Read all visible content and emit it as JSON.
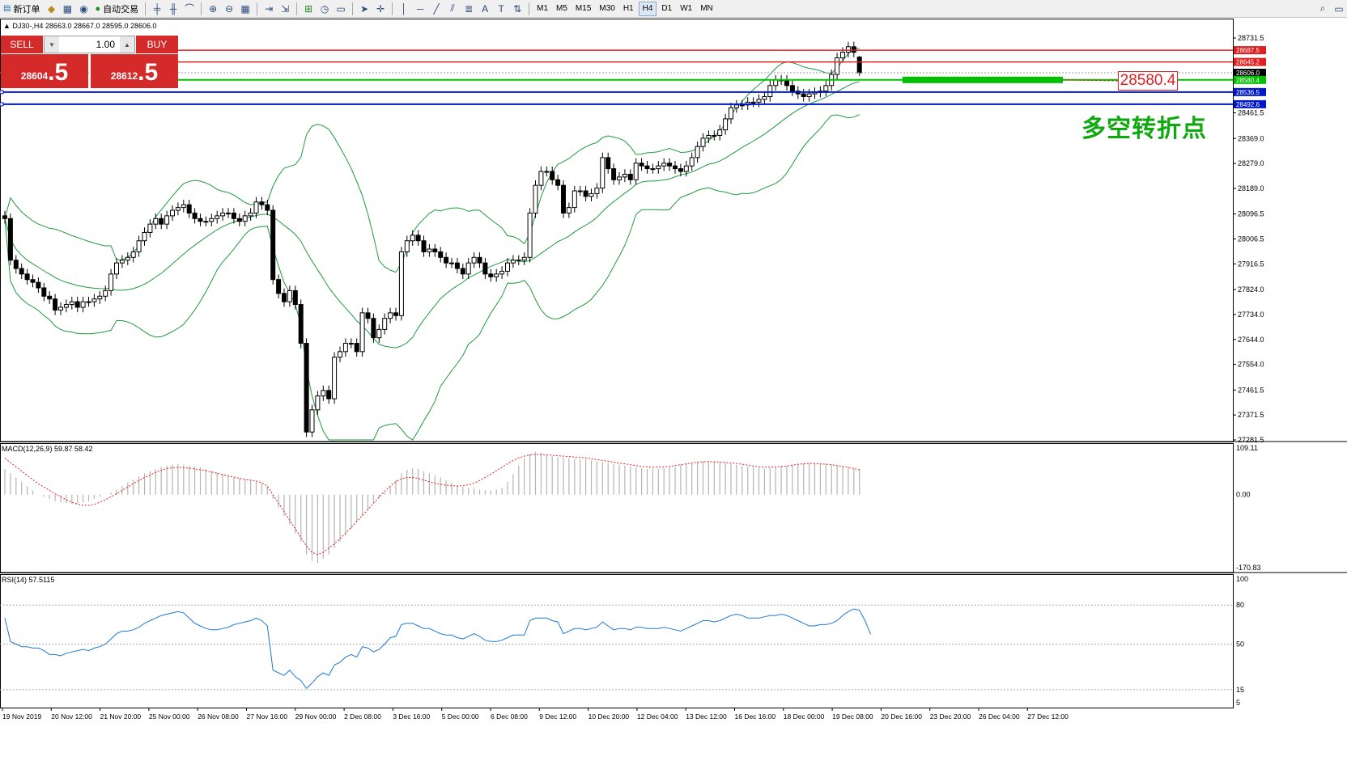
{
  "toolbar": {
    "new_order": "新订单",
    "auto_trading": "自动交易",
    "timeframes": [
      "M1",
      "M5",
      "M15",
      "M30",
      "H1",
      "H4",
      "D1",
      "W1",
      "MN"
    ],
    "active_timeframe": "H4"
  },
  "chart_info": "DJ30-,H4  28663.0 28667.0 28595.0 28606.0",
  "trade_panel": {
    "sell_label": "SELL",
    "buy_label": "BUY",
    "lot": "1.00",
    "sell_small": "28604",
    "sell_big": ".5",
    "buy_small": "28612",
    "buy_big": ".5"
  },
  "annotation": {
    "price_box": "28580.4",
    "text": "多空转折点"
  },
  "colors": {
    "bollinger": "#1e9a3c",
    "resistance": "#e02020",
    "pivot": "#00c000",
    "support": "#0018c8",
    "macd_signal": "#e02020",
    "macd_hist": "#b4b4b4",
    "rsi": "#1e78d2"
  },
  "chart_data": [
    {
      "type": "candlestick",
      "symbol": "DJ30-",
      "timeframe": "H4",
      "ohlc_last": {
        "open": 28663.0,
        "high": 28667.0,
        "low": 28595.0,
        "close": 28606.0
      },
      "ylim": [
        27281.5,
        28731.5
      ],
      "y_ticks": [
        28731.5,
        28461.5,
        28369.0,
        28279.0,
        28189.0,
        28096.5,
        28006.5,
        27916.5,
        27824.0,
        27734.0,
        27644.0,
        27554.0,
        27461.5,
        27371.5,
        27281.5
      ],
      "x_ticks": [
        "19 Nov 2019",
        "20 Nov 12:00",
        "21 Nov 20:00",
        "25 Nov 00:00",
        "26 Nov 08:00",
        "27 Nov 16:00",
        "29 Nov 00:00",
        "2 Dec 08:00",
        "3 Dec 16:00",
        "5 Dec 00:00",
        "6 Dec 08:00",
        "9 Dec 12:00",
        "10 Dec 20:00",
        "12 Dec 04:00",
        "13 Dec 12:00",
        "16 Dec 16:00",
        "18 Dec 00:00",
        "19 Dec 08:00",
        "20 Dec 16:00",
        "23 Dec 20:00",
        "26 Dec 04:00",
        "27 Dec 12:00"
      ],
      "closes": [
        28080,
        27930,
        27900,
        27880,
        27860,
        27850,
        27830,
        27800,
        27790,
        27750,
        27760,
        27770,
        27780,
        27760,
        27780,
        27780,
        27790,
        27800,
        27820,
        27880,
        27920,
        27930,
        27940,
        27960,
        28000,
        28030,
        28060,
        28080,
        28060,
        28090,
        28110,
        28120,
        28130,
        28100,
        28080,
        28070,
        28070,
        28080,
        28090,
        28100,
        28100,
        28080,
        28070,
        28090,
        28100,
        28140,
        28130,
        28110,
        27860,
        27810,
        27780,
        27820,
        27770,
        27630,
        27310,
        27390,
        27440,
        27460,
        27430,
        27580,
        27600,
        27630,
        27630,
        27600,
        27740,
        27720,
        27650,
        27680,
        27720,
        27740,
        27730,
        27960,
        28000,
        28020,
        28000,
        27960,
        27970,
        27960,
        27940,
        27920,
        27920,
        27900,
        27880,
        27920,
        27940,
        27920,
        27880,
        27870,
        27880,
        27890,
        27920,
        27930,
        27930,
        27940,
        28100,
        28200,
        28250,
        28250,
        28220,
        28200,
        28100,
        28120,
        28180,
        28180,
        28160,
        28170,
        28190,
        28300,
        28260,
        28220,
        28230,
        28240,
        28220,
        28280,
        28270,
        28260,
        28260,
        28270,
        28280,
        28270,
        28260,
        28250,
        28270,
        28300,
        28340,
        28370,
        28380,
        28380,
        28400,
        28440,
        28480,
        28490,
        28490,
        28500,
        28500,
        28510,
        28520,
        28560,
        28580,
        28580,
        28560,
        28540,
        28530,
        28520,
        28530,
        28535,
        28540,
        28560,
        28600,
        28660,
        28680,
        28700,
        28680,
        28606
      ],
      "overlays": {
        "bollinger_bands": "upper/middle/lower",
        "horizontal_levels": [
          {
            "value": 28687.5,
            "color": "#e02020"
          },
          {
            "value": 28645.2,
            "color": "#e02020"
          },
          {
            "value": 28606.0,
            "color": "#000000"
          },
          {
            "value": 28580.4,
            "color": "#00c000"
          },
          {
            "value": 28536.5,
            "color": "#0018c8"
          },
          {
            "value": 28492.6,
            "color": "#0018c8"
          }
        ]
      }
    },
    {
      "type": "bar",
      "title": "MACD(12,26,9) 59.87 58.42",
      "ylim": [
        -170.83,
        109.11
      ],
      "y_ticks": [
        109.11,
        0.0,
        -170.83
      ],
      "macd_values": [
        60,
        50,
        40,
        30,
        20,
        10,
        0,
        -5,
        -10,
        -15,
        -18,
        -20,
        -22,
        -20,
        -18,
        -15,
        -10,
        -5,
        0,
        5,
        12,
        20,
        28,
        35,
        42,
        50,
        55,
        60,
        65,
        68,
        70,
        72,
        70,
        68,
        66,
        64,
        60,
        56,
        52,
        48,
        44,
        40,
        38,
        36,
        34,
        30,
        26,
        20,
        -10,
        -30,
        -50,
        -70,
        -90,
        -110,
        -140,
        -155,
        -160,
        -150,
        -140,
        -125,
        -110,
        -95,
        -80,
        -65,
        -50,
        -35,
        -20,
        -8,
        5,
        20,
        35,
        50,
        58,
        62,
        60,
        55,
        50,
        45,
        40,
        34,
        28,
        22,
        18,
        16,
        14,
        12,
        10,
        10,
        12,
        16,
        30,
        48,
        68,
        85,
        95,
        100,
        98,
        94,
        90,
        88,
        86,
        85,
        84,
        83,
        82,
        80,
        78,
        76,
        74,
        72,
        70,
        68,
        66,
        64,
        62,
        60,
        60,
        60,
        62,
        64,
        66,
        70,
        72,
        74,
        76,
        78,
        78,
        78,
        76,
        74,
        72,
        70,
        68,
        66,
        64,
        62,
        60,
        62,
        64,
        66,
        68,
        70,
        72,
        73,
        74,
        74,
        73,
        72,
        70,
        68,
        66,
        64,
        62,
        60
      ],
      "signal_values": [
        85,
        75,
        65,
        55,
        45,
        35,
        25,
        18,
        10,
        2,
        -5,
        -12,
        -18,
        -22,
        -25,
        -25,
        -23,
        -18,
        -12,
        -5,
        2,
        10,
        18,
        26,
        33,
        40,
        46,
        52,
        57,
        61,
        63,
        64,
        63,
        62,
        60,
        58,
        56,
        53,
        50,
        47,
        44,
        41,
        38,
        36,
        34,
        32,
        28,
        20,
        0,
        -20,
        -40,
        -60,
        -80,
        -100,
        -120,
        -135,
        -140,
        -135,
        -125,
        -115,
        -103,
        -90,
        -77,
        -63,
        -49,
        -35,
        -20,
        -6,
        8,
        20,
        30,
        37,
        40,
        40,
        38,
        34,
        30,
        27,
        24,
        22,
        21,
        20,
        21,
        23,
        27,
        33,
        40,
        48,
        56,
        64,
        72,
        80,
        86,
        90,
        93,
        94,
        94,
        93,
        92,
        91,
        90,
        89,
        88,
        87,
        86,
        84,
        82,
        80,
        78,
        76,
        74,
        72,
        70,
        68,
        66,
        65,
        64,
        64,
        65,
        66,
        68,
        70,
        72,
        74,
        76,
        77,
        77,
        77,
        76,
        75,
        74,
        73,
        71,
        69,
        67,
        65,
        64,
        64,
        65,
        66,
        67,
        69,
        71,
        72,
        73,
        73,
        72,
        71,
        70,
        68,
        66,
        64,
        61,
        58
      ]
    },
    {
      "type": "line",
      "title": "RSI(14) 57.5115",
      "ylim": [
        5,
        100
      ],
      "y_ticks": [
        100,
        80,
        50,
        15,
        5
      ],
      "values": [
        70,
        52,
        50,
        48,
        48,
        47,
        47,
        45,
        42,
        42,
        41,
        43,
        44,
        45,
        46,
        45,
        47,
        48,
        50,
        54,
        58,
        60,
        60,
        61,
        63,
        66,
        68,
        70,
        72,
        73,
        74,
        75,
        74,
        70,
        66,
        64,
        62,
        61,
        61,
        62,
        63,
        65,
        66,
        67,
        68,
        70,
        68,
        64,
        30,
        28,
        26,
        30,
        25,
        22,
        16,
        20,
        25,
        28,
        26,
        34,
        36,
        40,
        42,
        40,
        48,
        47,
        44,
        46,
        50,
        55,
        56,
        65,
        66,
        66,
        64,
        62,
        62,
        60,
        58,
        57,
        57,
        55,
        54,
        56,
        58,
        56,
        53,
        52,
        52,
        53,
        55,
        57,
        57,
        57,
        68,
        70,
        70,
        70,
        68,
        67,
        58,
        60,
        62,
        62,
        61,
        62,
        63,
        67,
        64,
        61,
        62,
        62,
        61,
        63,
        63,
        62,
        62,
        62,
        63,
        62,
        61,
        60,
        62,
        64,
        66,
        68,
        68,
        67,
        68,
        70,
        72,
        73,
        72,
        70,
        70,
        70,
        71,
        72,
        72,
        73,
        72,
        70,
        68,
        66,
        64,
        64,
        65,
        65,
        66,
        68,
        72,
        75,
        77,
        76,
        68,
        57.5115
      ]
    }
  ]
}
